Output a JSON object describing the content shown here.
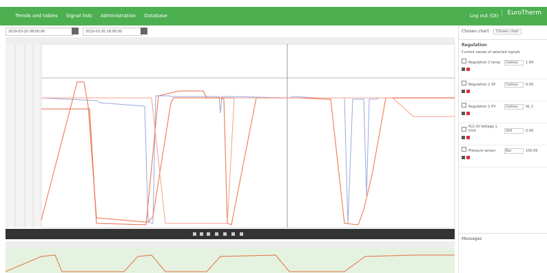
{
  "header": {
    "nav": [
      "Trends and tables",
      "Signal lists",
      "Administration",
      "Database"
    ],
    "user": "Log out (Ot)",
    "brand": "EuroTherm"
  },
  "toolbar": {
    "from": "2019-03-20 08:00:00",
    "to": "2019-03-20 18:00:00"
  },
  "panel": {
    "chosen_label": "Chosen chart",
    "chosen_value": "Chosen chart",
    "group": "Regulation",
    "description": "Current values of selected signals",
    "items": [
      {
        "label": "Regulation 1 temp",
        "unit": "Celsius",
        "value": "1.84"
      },
      {
        "label": "Regulation 1 SP",
        "unit": "Celsius",
        "value": "0.00"
      },
      {
        "label": "Regulation 1 PV",
        "unit": "Celsius",
        "value": "91.1"
      },
      {
        "label": "PLC-IO Voltage 1 limit",
        "unit": "Volt",
        "value": "0.00"
      },
      {
        "label": "Pressure sensor",
        "unit": "Bar",
        "value": "100.00"
      }
    ],
    "messages": "Messages"
  }
}
